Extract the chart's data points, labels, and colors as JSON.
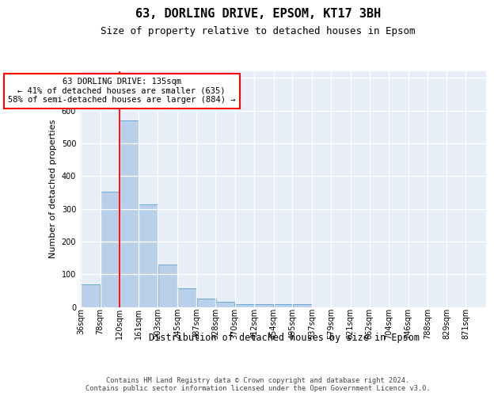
{
  "title": "63, DORLING DRIVE, EPSOM, KT17 3BH",
  "subtitle": "Size of property relative to detached houses in Epsom",
  "xlabel": "Distribution of detached houses by size in Epsom",
  "ylabel": "Number of detached properties",
  "bar_color": "#b8d0ea",
  "bar_edge_color": "#6aaad4",
  "background_color": "#e8eef8",
  "grid_color": "#ffffff",
  "red_line_x": 120,
  "bins": [
    36,
    78,
    120,
    161,
    203,
    245,
    287,
    328,
    370,
    412,
    454,
    495,
    537,
    579,
    621,
    662,
    704,
    746,
    788,
    829,
    871
  ],
  "counts": [
    70,
    352,
    570,
    313,
    130,
    57,
    25,
    15,
    8,
    8,
    8,
    8,
    0,
    0,
    0,
    0,
    0,
    0,
    0,
    0
  ],
  "annotation_text": "63 DORLING DRIVE: 135sqm\n← 41% of detached houses are smaller (635)\n58% of semi-detached houses are larger (884) →",
  "footer_text": "Contains HM Land Registry data © Crown copyright and database right 2024.\nContains public sector information licensed under the Open Government Licence v3.0.",
  "ylim": [
    0,
    720
  ],
  "yticks": [
    0,
    100,
    200,
    300,
    400,
    500,
    600,
    700
  ],
  "title_fontsize": 11,
  "subtitle_fontsize": 9,
  "ylabel_fontsize": 8,
  "xlabel_fontsize": 8.5,
  "tick_fontsize": 7,
  "ann_fontsize": 7.5,
  "footer_fontsize": 6.2
}
